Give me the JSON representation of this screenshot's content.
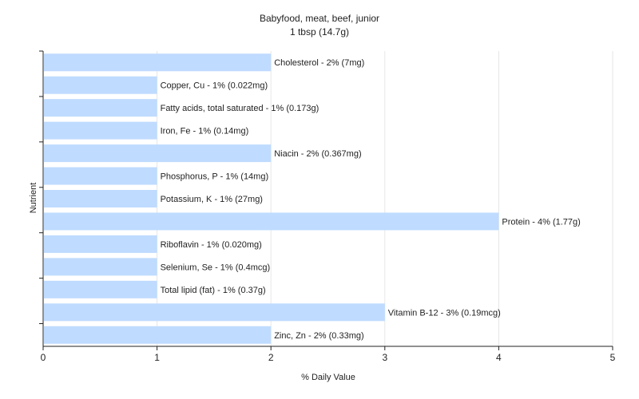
{
  "chart_data": {
    "type": "bar",
    "orientation": "horizontal",
    "title": "Babyfood, meat, beef, junior",
    "subtitle": "1 tbsp (14.7g)",
    "xlabel": "% Daily Value",
    "ylabel": "Nutrient",
    "xlim": [
      0,
      5
    ],
    "xticks": [
      0,
      1,
      2,
      3,
      4,
      5
    ],
    "grid": "vertical",
    "bar_color": "#bfdbff",
    "categories": [
      "Cholesterol",
      "Copper, Cu",
      "Fatty acids, total saturated",
      "Iron, Fe",
      "Niacin",
      "Phosphorus, P",
      "Potassium, K",
      "Protein",
      "Riboflavin",
      "Selenium, Se",
      "Total lipid (fat)",
      "Vitamin B-12",
      "Zinc, Zn"
    ],
    "values": [
      2,
      1,
      1,
      1,
      2,
      1,
      1,
      4,
      1,
      1,
      1,
      3,
      2
    ],
    "data_labels": [
      "Cholesterol - 2% (7mg)",
      "Copper, Cu - 1% (0.022mg)",
      "Fatty acids, total saturated - 1% (0.173g)",
      "Iron, Fe - 1% (0.14mg)",
      "Niacin - 2% (0.367mg)",
      "Phosphorus, P - 1% (14mg)",
      "Potassium, K - 1% (27mg)",
      "Protein - 4% (1.77g)",
      "Riboflavin - 1% (0.020mg)",
      "Selenium, Se - 1% (0.4mcg)",
      "Total lipid (fat) - 1% (0.37g)",
      "Vitamin B-12 - 3% (0.19mcg)",
      "Zinc, Zn - 2% (0.33mg)"
    ]
  }
}
